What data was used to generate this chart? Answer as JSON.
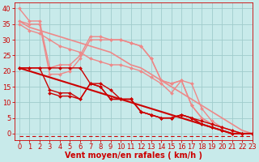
{
  "bg_color": "#c8eaea",
  "grid_color": "#a0cccc",
  "xlabel": "Vent moyen/en rafales ( km/h )",
  "xlabel_color": "#cc0000",
  "xlabel_fontsize": 7,
  "tick_color": "#cc0000",
  "tick_fontsize": 6,
  "ylim": [
    -2,
    42
  ],
  "xlim": [
    -0.5,
    23
  ],
  "yticks": [
    0,
    5,
    10,
    15,
    20,
    25,
    30,
    35,
    40
  ],
  "xticks": [
    0,
    1,
    2,
    3,
    4,
    5,
    6,
    7,
    8,
    9,
    10,
    11,
    12,
    13,
    14,
    15,
    16,
    17,
    18,
    19,
    20,
    21,
    22,
    23
  ],
  "lines_light": [
    {
      "x": [
        0,
        1,
        2,
        3,
        4,
        5,
        6,
        7,
        8,
        9,
        10,
        11,
        12,
        13,
        14,
        15,
        16,
        17,
        18,
        19,
        20,
        21,
        22,
        23
      ],
      "y": [
        36,
        34,
        33,
        32,
        31,
        30,
        29,
        28,
        27,
        26,
        24,
        22,
        21,
        19,
        17,
        15,
        13,
        11,
        9,
        7,
        5,
        3,
        1,
        0
      ],
      "color": "#ee8888",
      "lw": 1.2,
      "marker": null,
      "ms": 0
    },
    {
      "x": [
        0,
        1,
        2,
        3,
        4,
        5,
        6,
        7,
        8,
        9,
        10,
        11,
        12,
        13,
        14,
        15,
        16,
        17,
        18,
        19,
        20,
        21,
        22,
        23
      ],
      "y": [
        40,
        36,
        36,
        21,
        22,
        22,
        25,
        31,
        31,
        30,
        30,
        29,
        28,
        24,
        17,
        16,
        17,
        9,
        5,
        3,
        2,
        1,
        0,
        0
      ],
      "color": "#ee8888",
      "lw": 1.0,
      "marker": "D",
      "ms": 2.0
    },
    {
      "x": [
        0,
        1,
        2,
        3,
        4,
        5,
        6,
        7,
        8,
        9,
        10,
        11,
        12,
        13,
        14,
        15,
        16,
        17,
        18,
        19,
        20,
        21,
        22,
        23
      ],
      "y": [
        36,
        35,
        35,
        19,
        19,
        20,
        24,
        30,
        30,
        30,
        30,
        29,
        28,
        24,
        17,
        16,
        17,
        9,
        5,
        3,
        2,
        1,
        0,
        0
      ],
      "color": "#ee8888",
      "lw": 1.0,
      "marker": "D",
      "ms": 2.0
    },
    {
      "x": [
        0,
        1,
        2,
        3,
        4,
        5,
        6,
        7,
        8,
        9,
        10,
        11,
        12,
        13,
        14,
        15,
        16,
        17,
        18,
        19,
        20,
        21,
        22,
        23
      ],
      "y": [
        35,
        33,
        32,
        30,
        28,
        27,
        26,
        24,
        23,
        22,
        22,
        21,
        20,
        18,
        16,
        13,
        17,
        16,
        8,
        4,
        2,
        1,
        0,
        0
      ],
      "color": "#ee8888",
      "lw": 1.0,
      "marker": "D",
      "ms": 2.0
    }
  ],
  "lines_dark": [
    {
      "x": [
        0,
        1,
        2,
        3,
        4,
        5,
        6,
        7,
        8,
        9,
        10,
        11,
        12,
        13,
        14,
        15,
        16,
        17,
        18,
        19,
        20,
        21,
        22,
        23
      ],
      "y": [
        21,
        20,
        19,
        18,
        17,
        16,
        15,
        14,
        13,
        12,
        11,
        10,
        9,
        8,
        7,
        6,
        5,
        4,
        3,
        2,
        1,
        0,
        0,
        0
      ],
      "color": "#cc0000",
      "lw": 1.5,
      "marker": null,
      "ms": 0
    },
    {
      "x": [
        0,
        1,
        2,
        3,
        4,
        5,
        6,
        7,
        8,
        9,
        10,
        11,
        12,
        13,
        14,
        15,
        16,
        17,
        18,
        19,
        20,
        21,
        22,
        23
      ],
      "y": [
        21,
        21,
        21,
        21,
        21,
        21,
        21,
        16,
        15,
        11,
        11,
        11,
        7,
        6,
        5,
        5,
        6,
        5,
        3,
        2,
        1,
        0,
        0,
        0
      ],
      "color": "#cc0000",
      "lw": 1.0,
      "marker": "D",
      "ms": 2.0
    },
    {
      "x": [
        0,
        1,
        2,
        3,
        4,
        5,
        6,
        7,
        8,
        9,
        10,
        11,
        12,
        13,
        14,
        15,
        16,
        17,
        18,
        19,
        20,
        21,
        22,
        23
      ],
      "y": [
        21,
        21,
        21,
        14,
        13,
        13,
        11,
        16,
        15,
        11,
        11,
        11,
        7,
        6,
        5,
        5,
        6,
        5,
        3,
        2,
        1,
        0,
        0,
        0
      ],
      "color": "#cc0000",
      "lw": 1.0,
      "marker": "D",
      "ms": 2.0
    },
    {
      "x": [
        3,
        4,
        5,
        6,
        7,
        8,
        9,
        10,
        11,
        12,
        13,
        14,
        15,
        16,
        17,
        18,
        19,
        20,
        21,
        22,
        23
      ],
      "y": [
        13,
        12,
        12,
        11,
        16,
        16,
        14,
        11,
        11,
        7,
        6,
        5,
        5,
        6,
        5,
        4,
        3,
        2,
        1,
        0,
        0
      ],
      "color": "#cc0000",
      "lw": 1.0,
      "marker": "D",
      "ms": 2.0
    }
  ],
  "dashed_line": {
    "x": [
      0,
      23
    ],
    "y": [
      -0.8,
      -0.8
    ],
    "color": "#cc0000",
    "lw": 0.8
  }
}
